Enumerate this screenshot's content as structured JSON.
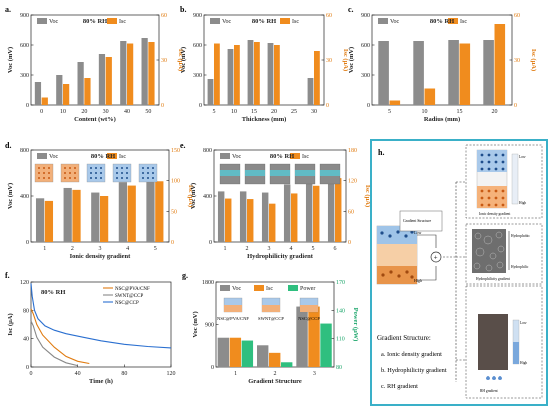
{
  "colors": {
    "voc": "#8c8c8c",
    "isc": "#f08c1e",
    "power": "#2fbf7f",
    "frame": "#3ab0c8",
    "accent_orange": "#e07b10",
    "accent_green": "#1aa56a"
  },
  "chart_data": [
    {
      "panel": "a",
      "type": "bar",
      "condition": "80% RH",
      "xlabel": "Content (wt%)",
      "ylabel_left": "Voc (mV)",
      "ylabel_right": "Isc (μA)",
      "categories": [
        "0",
        "10",
        "20",
        "30",
        "40",
        "50"
      ],
      "ylim_left": [
        0,
        900
      ],
      "yticks_left": [
        "0",
        "300",
        "600",
        "900"
      ],
      "ylim_right": [
        0,
        60
      ],
      "yticks_right": [
        "0",
        "30",
        "60"
      ],
      "series": [
        {
          "name": "Voc",
          "axis": "left",
          "values": [
            230,
            300,
            430,
            510,
            640,
            670
          ]
        },
        {
          "name": "Isc",
          "axis": "right",
          "values": [
            5,
            14,
            18,
            32,
            41,
            42
          ]
        }
      ]
    },
    {
      "panel": "b",
      "type": "bar",
      "condition": "80% RH",
      "xlabel": "Thickness (mm)",
      "ylabel_left": "Voc (mV)",
      "ylabel_right": "Isc (μA)",
      "categories": [
        "5",
        "10",
        "15",
        "20",
        "25",
        "30"
      ],
      "ylim_left": [
        0,
        900
      ],
      "yticks_left": [
        "0",
        "300",
        "600",
        "900"
      ],
      "ylim_right": [
        0,
        60
      ],
      "yticks_right": [
        "0",
        "30",
        "60"
      ],
      "series": [
        {
          "name": "Voc",
          "axis": "left",
          "values": [
            260,
            560,
            650,
            620,
            0,
            270
          ]
        },
        {
          "name": "Isc",
          "axis": "right",
          "values": [
            41,
            40,
            42,
            40,
            0,
            36
          ]
        }
      ]
    },
    {
      "panel": "c",
      "type": "bar",
      "condition": "80% RH",
      "xlabel": "Radius (mm)",
      "ylabel_left": "Voc (mV)",
      "ylabel_right": "Isc (μA)",
      "categories": [
        "5",
        "10",
        "15",
        "20"
      ],
      "ylim_left": [
        0,
        900
      ],
      "yticks_left": [
        "0",
        "300",
        "600",
        "900"
      ],
      "ylim_right": [
        0,
        60
      ],
      "yticks_right": [
        "0",
        "30",
        "60"
      ],
      "series": [
        {
          "name": "Voc",
          "axis": "left",
          "values": [
            640,
            640,
            650,
            650
          ]
        },
        {
          "name": "Isc",
          "axis": "right",
          "values": [
            3,
            11,
            41,
            54
          ]
        }
      ]
    },
    {
      "panel": "d",
      "type": "bar",
      "condition": "80% RH",
      "xlabel": "Ionic density gradient",
      "ylabel_left": "Voc (mV)",
      "ylabel_right": "Isc (μA)",
      "categories": [
        "1",
        "2",
        "3",
        "4",
        "5"
      ],
      "ylim_left": [
        0,
        800
      ],
      "yticks_left": [
        "0",
        "400",
        "800"
      ],
      "ylim_right": [
        0,
        150
      ],
      "yticks_right": [
        "0",
        "50",
        "100",
        "150"
      ],
      "series": [
        {
          "name": "Voc",
          "axis": "left",
          "values": [
            380,
            470,
            430,
            520,
            550
          ]
        },
        {
          "name": "Isc",
          "axis": "right",
          "values": [
            67,
            85,
            75,
            92,
            99
          ]
        }
      ]
    },
    {
      "panel": "e",
      "type": "bar",
      "condition": "80% RH",
      "xlabel": "Hydrophilicity gradient",
      "ylabel_left": "Voc (mV)",
      "ylabel_right": "Isc (μA)",
      "categories": [
        "1",
        "2",
        "3",
        "4",
        "5",
        "6"
      ],
      "ylim_left": [
        0,
        800
      ],
      "yticks_left": [
        "0",
        "400",
        "800"
      ],
      "ylim_right": [
        0,
        180
      ],
      "yticks_right": [
        "0",
        "60",
        "120",
        "180"
      ],
      "series": [
        {
          "name": "Voc",
          "axis": "left",
          "values": [
            440,
            440,
            430,
            500,
            520,
            580
          ]
        },
        {
          "name": "Isc",
          "axis": "right",
          "values": [
            85,
            84,
            75,
            95,
            110,
            125
          ]
        }
      ]
    },
    {
      "panel": "f",
      "type": "line",
      "condition": "80% RH",
      "xlabel": "Time (h)",
      "ylabel": "Isc (μA)",
      "xlim": [
        0,
        120
      ],
      "xticks": [
        "0",
        "40",
        "80",
        "120"
      ],
      "ylim": [
        0,
        120
      ],
      "yticks": [
        "0",
        "40",
        "80",
        "120"
      ],
      "series": [
        {
          "name": "NSC@PVA/CNF",
          "color": "#e07b10",
          "x": [
            0,
            2,
            5,
            10,
            20,
            30,
            40,
            50
          ],
          "y": [
            82,
            75,
            60,
            45,
            28,
            15,
            8,
            5
          ]
        },
        {
          "name": "SWNT@CCP",
          "color": "#888888",
          "x": [
            0,
            2,
            5,
            10,
            20,
            30,
            40
          ],
          "y": [
            65,
            58,
            42,
            28,
            14,
            6,
            2
          ]
        },
        {
          "name": "NSC@CCP",
          "color": "#2a6fd0",
          "x": [
            0,
            1,
            3,
            6,
            12,
            20,
            30,
            45,
            60,
            80,
            100,
            120
          ],
          "y": [
            118,
            100,
            80,
            68,
            58,
            52,
            47,
            42,
            37,
            32,
            29,
            27
          ]
        }
      ]
    },
    {
      "panel": "g",
      "type": "bar",
      "xlabel": "Gradient Structure",
      "ylabel_left": "Voc (mV)",
      "ylabel_right": "Power (μW)",
      "categories": [
        "1",
        "2",
        "3"
      ],
      "ylim_left": [
        0,
        1800
      ],
      "yticks_left": [
        "0",
        "900",
        "1800"
      ],
      "ylim_right": [
        80,
        170
      ],
      "yticks_right": [
        "80",
        "110",
        "140",
        "170"
      ],
      "cartoons": [
        "NSC@PVA/CNF",
        "SWNT@CCP",
        "NSC@CCP"
      ],
      "series": [
        {
          "name": "Voc",
          "axis": "left",
          "values": [
            620,
            460,
            1280
          ]
        },
        {
          "name": "Isc",
          "axis": "left",
          "values": [
            620,
            300,
            1280
          ]
        },
        {
          "name": "Power",
          "axis": "right",
          "values": [
            108,
            85,
            126
          ]
        }
      ]
    }
  ],
  "panel_h": {
    "label": "h.",
    "device_caption": "Gradient Structure",
    "device_labels": [
      "Low",
      "High"
    ],
    "plus_label": "+",
    "ionic_caption": "Ionic density gradient",
    "ionic_scale": [
      "Low",
      "High"
    ],
    "hydro_caption": "Hydrophilicity gradient",
    "hydro_scale": [
      "Hydrophobic",
      "Hydrophilic"
    ],
    "rh_caption": "RH gradient",
    "rh_scale": [
      "Low",
      "High"
    ],
    "title": "Gradient Structure:",
    "items": [
      "a. Ionic density gradient",
      "b. Hydrophilicity gradient",
      "c. RH gradient"
    ]
  }
}
